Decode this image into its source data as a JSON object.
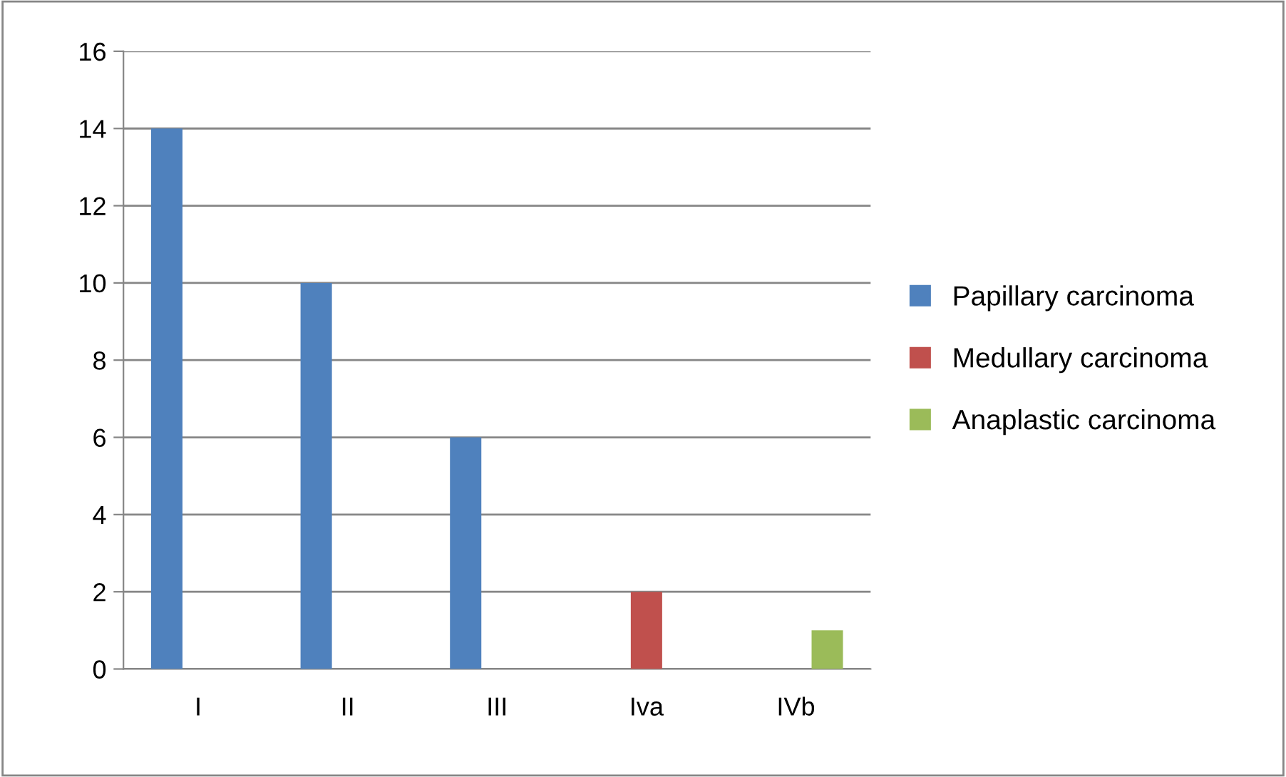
{
  "chart_data": {
    "type": "bar",
    "categories": [
      "I",
      "II",
      "III",
      "Iva",
      "IVb"
    ],
    "series": [
      {
        "name": "Papillary carcinoma",
        "color": "#4f81bd",
        "values": [
          14,
          10,
          6,
          null,
          null
        ]
      },
      {
        "name": "Medullary carcinoma",
        "color": "#c0504d",
        "values": [
          null,
          null,
          null,
          2,
          null
        ]
      },
      {
        "name": "Anaplastic carcinoma",
        "color": "#9bbb59",
        "values": [
          null,
          null,
          null,
          null,
          1
        ]
      }
    ],
    "ylim": [
      0,
      16
    ],
    "yticks": [
      0,
      2,
      4,
      6,
      8,
      10,
      12,
      14,
      16
    ],
    "grid": "y",
    "legend": "right"
  }
}
